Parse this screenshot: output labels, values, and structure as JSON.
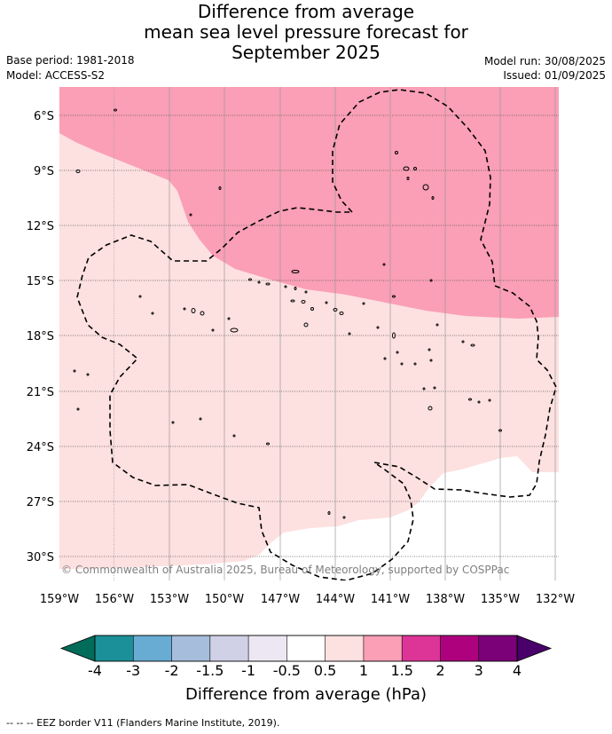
{
  "title": {
    "line1": "Difference from average",
    "line2": "mean sea level pressure forecast for",
    "line3": "September 2025"
  },
  "meta": {
    "base_period": "Base period: 1981-2018",
    "model": "Model: ACCESS-S2",
    "model_run": "Model run: 30/08/2025",
    "issued": "Issued: 01/09/2025"
  },
  "map": {
    "copyright": "© Commonwealth of Australia 2025, Bureau of Meteorology, supported by COSPPac",
    "lat_labels": [
      "6°S",
      "9°S",
      "12°S",
      "15°S",
      "18°S",
      "21°S",
      "24°S",
      "27°S",
      "30°S"
    ],
    "lon_labels": [
      "159°W",
      "156°W",
      "153°W",
      "150°W",
      "147°W",
      "144°W",
      "141°W",
      "138°W",
      "135°W",
      "132°W"
    ],
    "lat_range": [
      -31.5,
      -4.5
    ],
    "lon_range": [
      -159,
      -132
    ]
  },
  "colorbar": {
    "title": "Difference from average (hPa)",
    "tick_labels": [
      "-4",
      "-3",
      "-2",
      "-1.5",
      "-1",
      "-0.5",
      "0.5",
      "1",
      "1.5",
      "2",
      "3",
      "4"
    ],
    "colors": [
      "#1b9098",
      "#68acd4",
      "#a6bddb",
      "#d0d1e6",
      "#ece7f2",
      "#ffffff",
      "#fde0e0",
      "#fa9fb5",
      "#dd3497",
      "#ae017e",
      "#7a0177"
    ],
    "under_color": "#016c59",
    "over_color": "#49006a"
  },
  "footer": {
    "legend_text": "--  --  -- EEZ border V11 (Flanders Marine Institute, 2019)."
  }
}
